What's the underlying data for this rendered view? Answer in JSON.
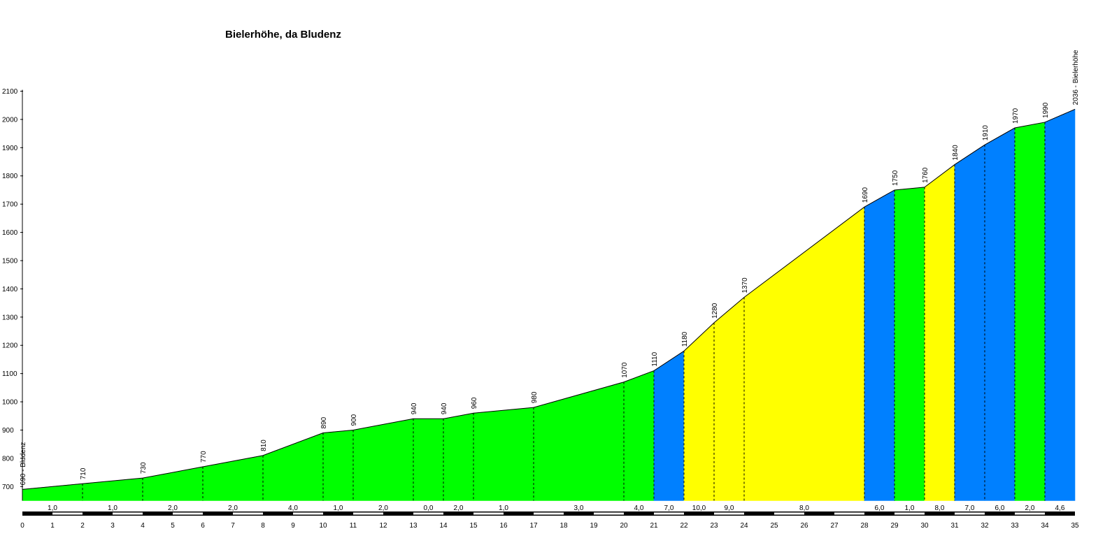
{
  "chart_data": {
    "type": "area",
    "title": "Bielerhöhe, da Bludenz",
    "xlim": [
      0,
      35
    ],
    "ylim": [
      650,
      2100
    ],
    "x_ticks": [
      "0",
      "1",
      "2",
      "3",
      "4",
      "5",
      "6",
      "7",
      "8",
      "9",
      "10",
      "11",
      "12",
      "13",
      "14",
      "15",
      "16",
      "17",
      "18",
      "19",
      "20",
      "21",
      "22",
      "23",
      "24",
      "25",
      "26",
      "27",
      "28",
      "29",
      "30",
      "31",
      "32",
      "33",
      "34",
      "35"
    ],
    "y_ticks": [
      "700",
      "800",
      "900",
      "1000",
      "1100",
      "1200",
      "1300",
      "1400",
      "1500",
      "1600",
      "1700",
      "1800",
      "1900",
      "2000",
      "2100"
    ],
    "points": [
      {
        "x": 0,
        "y": 690,
        "label": "690 - Bludenz"
      },
      {
        "x": 2,
        "y": 710,
        "label": "710"
      },
      {
        "x": 4,
        "y": 730,
        "label": "730"
      },
      {
        "x": 6,
        "y": 770,
        "label": "770"
      },
      {
        "x": 8,
        "y": 810,
        "label": "810"
      },
      {
        "x": 10,
        "y": 890,
        "label": "890"
      },
      {
        "x": 11,
        "y": 900,
        "label": "900"
      },
      {
        "x": 13,
        "y": 940,
        "label": "940"
      },
      {
        "x": 14,
        "y": 940,
        "label": "940"
      },
      {
        "x": 15,
        "y": 960,
        "label": "960"
      },
      {
        "x": 17,
        "y": 980,
        "label": "980"
      },
      {
        "x": 20,
        "y": 1070,
        "label": "1070"
      },
      {
        "x": 21,
        "y": 1110,
        "label": "1110"
      },
      {
        "x": 22,
        "y": 1180,
        "label": "1180"
      },
      {
        "x": 23,
        "y": 1280,
        "label": "1280"
      },
      {
        "x": 24,
        "y": 1370,
        "label": "1370"
      },
      {
        "x": 28,
        "y": 1690,
        "label": "1690"
      },
      {
        "x": 29,
        "y": 1750,
        "label": "1750"
      },
      {
        "x": 30,
        "y": 1760,
        "label": "1760"
      },
      {
        "x": 31,
        "y": 1840,
        "label": "1840"
      },
      {
        "x": 32,
        "y": 1910,
        "label": "1910"
      },
      {
        "x": 33,
        "y": 1970,
        "label": "1970"
      },
      {
        "x": 34,
        "y": 1990,
        "label": "1990"
      },
      {
        "x": 35,
        "y": 2036,
        "label": "2036 - Bielerhöhe"
      }
    ],
    "segments": [
      {
        "from": 0,
        "to": 2,
        "gradient": "1,0",
        "color": "#00ff00"
      },
      {
        "from": 2,
        "to": 4,
        "gradient": "1,0",
        "color": "#00ff00"
      },
      {
        "from": 4,
        "to": 6,
        "gradient": "2,0",
        "color": "#00ff00"
      },
      {
        "from": 6,
        "to": 8,
        "gradient": "2,0",
        "color": "#00ff00"
      },
      {
        "from": 8,
        "to": 10,
        "gradient": "4,0",
        "color": "#00ff00"
      },
      {
        "from": 10,
        "to": 11,
        "gradient": "1,0",
        "color": "#00ff00"
      },
      {
        "from": 11,
        "to": 13,
        "gradient": "2,0",
        "color": "#00ff00"
      },
      {
        "from": 13,
        "to": 14,
        "gradient": "0,0",
        "color": "#00ff00"
      },
      {
        "from": 14,
        "to": 15,
        "gradient": "2,0",
        "color": "#00ff00"
      },
      {
        "from": 15,
        "to": 17,
        "gradient": "1,0",
        "color": "#00ff00"
      },
      {
        "from": 17,
        "to": 20,
        "gradient": "3,0",
        "color": "#00ff00"
      },
      {
        "from": 20,
        "to": 21,
        "gradient": "4,0",
        "color": "#00ff00"
      },
      {
        "from": 21,
        "to": 22,
        "gradient": "7,0",
        "color": "#0080ff"
      },
      {
        "from": 22,
        "to": 23,
        "gradient": "10,0",
        "color": "#ffff00"
      },
      {
        "from": 23,
        "to": 24,
        "gradient": "9,0",
        "color": "#ffff00"
      },
      {
        "from": 24,
        "to": 28,
        "gradient": "8,0",
        "color": "#ffff00"
      },
      {
        "from": 28,
        "to": 29,
        "gradient": "6,0",
        "color": "#0080ff"
      },
      {
        "from": 29,
        "to": 30,
        "gradient": "1,0",
        "color": "#00ff00"
      },
      {
        "from": 30,
        "to": 31,
        "gradient": "8,0",
        "color": "#ffff00"
      },
      {
        "from": 31,
        "to": 32,
        "gradient": "7,0",
        "color": "#0080ff"
      },
      {
        "from": 32,
        "to": 33,
        "gradient": "6,0",
        "color": "#0080ff"
      },
      {
        "from": 33,
        "to": 34,
        "gradient": "2,0",
        "color": "#00ff00"
      },
      {
        "from": 34,
        "to": 35,
        "gradient": "4,6",
        "color": "#0080ff"
      }
    ]
  }
}
